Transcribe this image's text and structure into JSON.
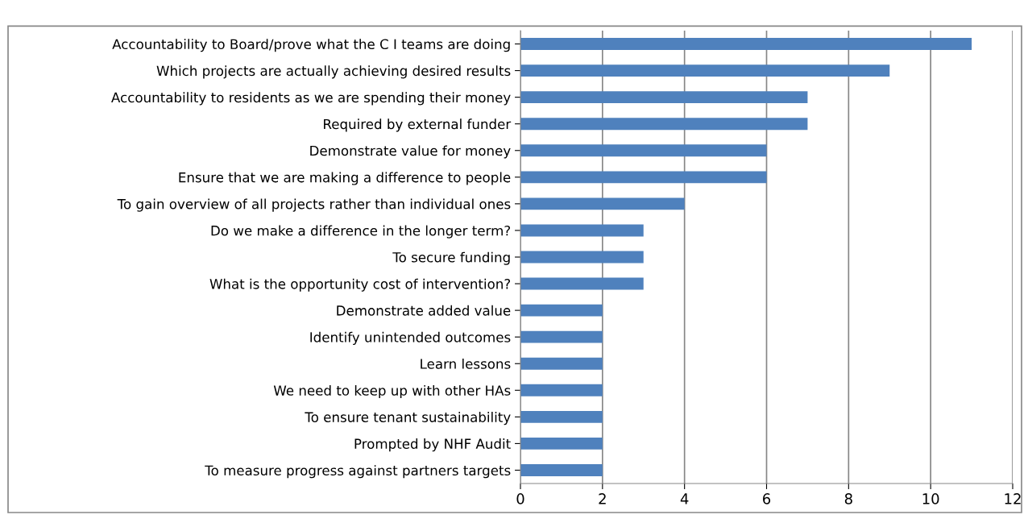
{
  "chart_data": {
    "type": "bar",
    "orientation": "horizontal",
    "categories": [
      "Accountability to Board/prove what the C I teams are doing",
      "Which projects are actually achieving desired results",
      "Accountability to residents as we are spending their money",
      "Required by external funder",
      "Demonstrate value for money",
      "Ensure that we are making a difference to people",
      "To gain overview of all projects rather than individual ones",
      "Do we make a difference in the longer term?",
      "To secure funding",
      "What is the opportunity cost of intervention?",
      "Demonstrate added value",
      "Identify unintended outcomes",
      "Learn lessons",
      "We need to keep up with other HAs",
      "To ensure tenant sustainability",
      "Prompted by NHF Audit",
      "To measure progress against partners targets"
    ],
    "values": [
      11,
      9,
      7,
      7,
      6,
      6,
      4,
      3,
      3,
      3,
      2,
      2,
      2,
      2,
      2,
      2,
      2
    ],
    "color": "#4f81bd",
    "xlim": [
      0,
      12
    ],
    "xticks": [
      0,
      2,
      4,
      6,
      8,
      10,
      12
    ],
    "grid": "x",
    "legend": false
  }
}
